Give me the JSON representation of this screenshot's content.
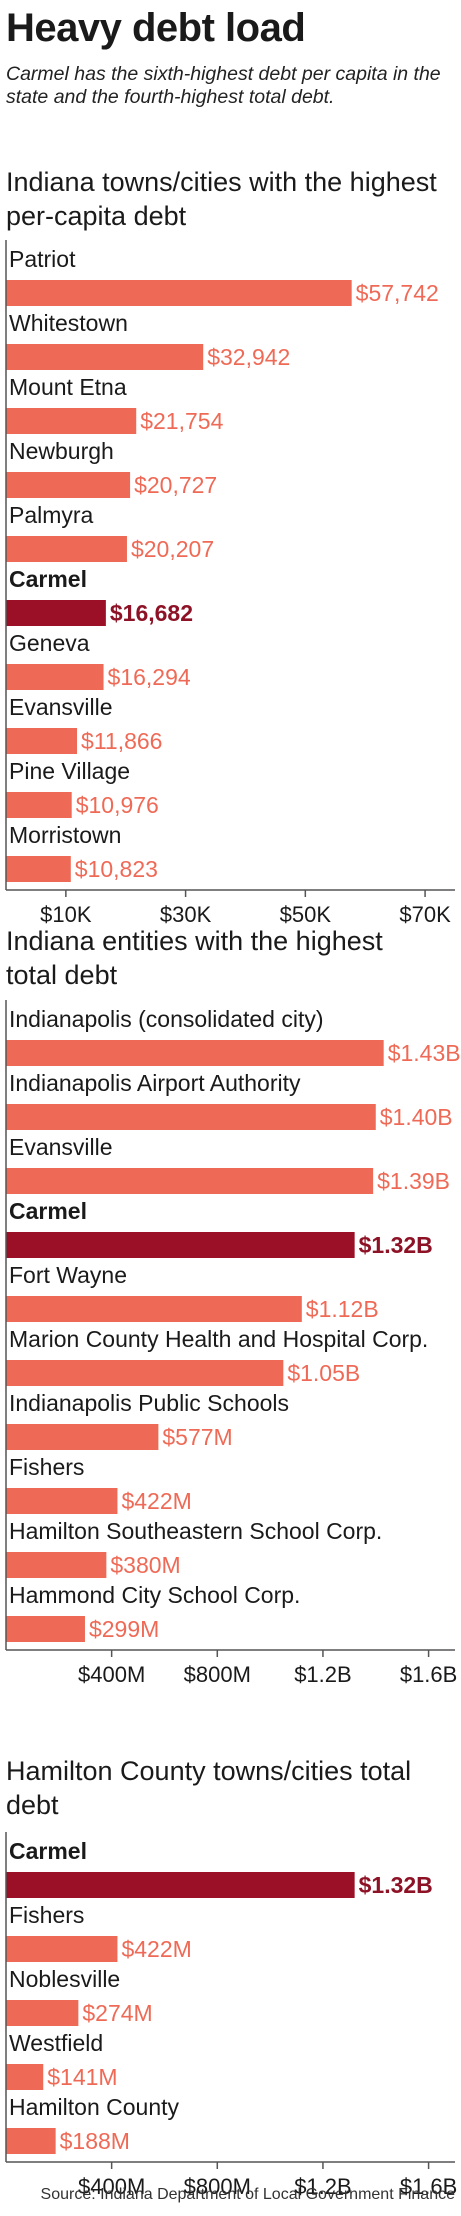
{
  "headline": "Heavy debt load",
  "dek": "Carmel has the sixth-highest debt per capita in the state and the fourth-highest total debt.",
  "source": "Source: Indiana Department of Local Government Finance",
  "colors": {
    "bar": "#ef6a56",
    "highlight": "#9b1027",
    "axis": "#555555",
    "tick_text": "#1a1a1a"
  },
  "chart_data": [
    {
      "type": "bar",
      "orientation": "horizontal",
      "title": "Indiana towns/cities with the highest per-capita debt",
      "categories": [
        "Patriot",
        "Whitestown",
        "Mount Etna",
        "Newburgh",
        "Palmyra",
        "Carmel",
        "Geneva",
        "Evansville",
        "Pine Village",
        "Morristown"
      ],
      "values": [
        57742,
        32942,
        21754,
        20727,
        20207,
        16682,
        16294,
        11866,
        10976,
        10823
      ],
      "value_labels": [
        "$57,742",
        "$32,942",
        "$21,754",
        "$20,727",
        "$20,207",
        "$16,682",
        "$16,294",
        "$11,866",
        "$10,976",
        "$10,823"
      ],
      "highlight": "Carmel",
      "xlim": [
        0,
        75000
      ],
      "ticks": [
        10000,
        30000,
        50000,
        70000
      ],
      "tick_labels": [
        "$10K",
        "$30K",
        "$50K",
        "$70K"
      ],
      "grid": false
    },
    {
      "type": "bar",
      "orientation": "horizontal",
      "title": "Indiana entities with the highest total debt",
      "categories": [
        "Indianapolis (consolidated city)",
        "Indianapolis Airport Authority",
        "Evansville",
        "Carmel",
        "Fort Wayne",
        "Marion County Health and Hospital Corp.",
        "Indianapolis Public Schools",
        "Fishers",
        "Hamilton Southeastern School Corp.",
        "Hammond City School Corp."
      ],
      "values": [
        1430000000,
        1400000000,
        1390000000,
        1320000000,
        1120000000,
        1050000000,
        577000000,
        422000000,
        380000000,
        299000000
      ],
      "value_labels": [
        "$1.43B",
        "$1.40B",
        "$1.39B",
        "$1.32B",
        "$1.12B",
        "$1.05B",
        "$577M",
        "$422M",
        "$380M",
        "$299M"
      ],
      "highlight": "Carmel",
      "xlim": [
        0,
        1700000000
      ],
      "ticks": [
        400000000,
        800000000,
        1200000000,
        1600000000
      ],
      "tick_labels": [
        "$400M",
        "$800M",
        "$1.2B",
        "$1.6B"
      ],
      "grid": false
    },
    {
      "type": "bar",
      "orientation": "horizontal",
      "title": "Hamilton County towns/cities total debt",
      "categories": [
        "Carmel",
        "Fishers",
        "Noblesville",
        "Westfield",
        "Hamilton County"
      ],
      "values": [
        1320000000,
        422000000,
        274000000,
        141000000,
        188000000
      ],
      "value_labels": [
        "$1.32B",
        "$422M",
        "$274M",
        "$141M",
        "$188M"
      ],
      "highlight": "Carmel",
      "xlim": [
        0,
        1700000000
      ],
      "ticks": [
        400000000,
        800000000,
        1200000000,
        1600000000
      ],
      "tick_labels": [
        "$400M",
        "$800M",
        "$1.2B",
        "$1.6B"
      ],
      "grid": false
    }
  ]
}
